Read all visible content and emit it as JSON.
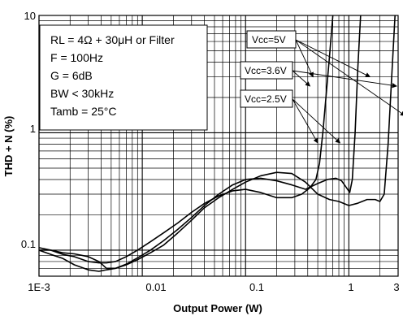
{
  "chart_data": {
    "type": "line",
    "xlabel": "Output Power (W)",
    "ylabel": "THD + N (%)",
    "x_scale": "log",
    "y_scale": "log",
    "xlim": [
      0.001,
      3
    ],
    "ylim": [
      0.06,
      10
    ],
    "x_ticks": [
      "1E-3",
      "0.01",
      "0.1",
      "1",
      "3"
    ],
    "y_ticks": [
      "0.1",
      "1",
      "10"
    ],
    "grid": true,
    "conditions": [
      "RL = 4Ω + 30μH or Filter",
      "F = 100Hz",
      "G = 6dB",
      "BW < 30kHz",
      "Tamb = 25°C"
    ],
    "series": [
      {
        "name": "Vcc=2.5V",
        "x": [
          0.001,
          0.0013,
          0.0017,
          0.0022,
          0.003,
          0.0038,
          0.0045,
          0.0055,
          0.007,
          0.009,
          0.012,
          0.016,
          0.022,
          0.03,
          0.04,
          0.055,
          0.075,
          0.1,
          0.14,
          0.2,
          0.28,
          0.35,
          0.42,
          0.48,
          0.52,
          0.56,
          0.6,
          0.65,
          0.7
        ],
        "values": [
          0.105,
          0.1,
          0.092,
          0.088,
          0.08,
          0.078,
          0.078,
          0.08,
          0.088,
          0.1,
          0.118,
          0.14,
          0.17,
          0.21,
          0.25,
          0.29,
          0.32,
          0.33,
          0.31,
          0.28,
          0.28,
          0.3,
          0.34,
          0.4,
          0.55,
          1.0,
          2.0,
          4.5,
          10
        ]
      },
      {
        "name": "Vcc=3.6V",
        "x": [
          0.001,
          0.0013,
          0.0017,
          0.0022,
          0.003,
          0.0038,
          0.0045,
          0.0055,
          0.007,
          0.009,
          0.012,
          0.016,
          0.022,
          0.03,
          0.04,
          0.055,
          0.075,
          0.1,
          0.14,
          0.2,
          0.28,
          0.38,
          0.5,
          0.62,
          0.75,
          0.85,
          0.95,
          1.02,
          1.08,
          1.15,
          1.22,
          1.3
        ],
        "values": [
          0.1,
          0.1,
          0.095,
          0.093,
          0.088,
          0.08,
          0.07,
          0.07,
          0.076,
          0.086,
          0.1,
          0.12,
          0.15,
          0.19,
          0.24,
          0.3,
          0.36,
          0.4,
          0.41,
          0.39,
          0.36,
          0.33,
          0.37,
          0.4,
          0.41,
          0.39,
          0.34,
          0.31,
          0.4,
          1.0,
          3.5,
          10
        ]
      },
      {
        "name": "Vcc=5V",
        "x": [
          0.001,
          0.0013,
          0.0017,
          0.0022,
          0.003,
          0.0038,
          0.0045,
          0.0055,
          0.007,
          0.009,
          0.012,
          0.016,
          0.022,
          0.03,
          0.04,
          0.055,
          0.075,
          0.1,
          0.14,
          0.2,
          0.28,
          0.38,
          0.5,
          0.65,
          0.8,
          1.0,
          1.2,
          1.5,
          1.8,
          2.0,
          2.2,
          2.4,
          2.6,
          2.8
        ],
        "values": [
          0.1,
          0.092,
          0.085,
          0.075,
          0.068,
          0.066,
          0.068,
          0.07,
          0.075,
          0.083,
          0.095,
          0.11,
          0.14,
          0.18,
          0.23,
          0.28,
          0.33,
          0.38,
          0.43,
          0.46,
          0.45,
          0.38,
          0.3,
          0.27,
          0.26,
          0.24,
          0.25,
          0.27,
          0.27,
          0.26,
          0.3,
          0.8,
          3.0,
          10
        ]
      }
    ],
    "annotations": [
      {
        "text": "Vcc=5V",
        "points_to": [
          0.45,
          3.5,
          1.6
        ]
      },
      {
        "text": "Vcc=3.6V",
        "points_to": [
          0.42,
          2.9
        ]
      },
      {
        "text": "Vcc=2.5V",
        "points_to": [
          0.5,
          0.82
        ]
      }
    ]
  }
}
